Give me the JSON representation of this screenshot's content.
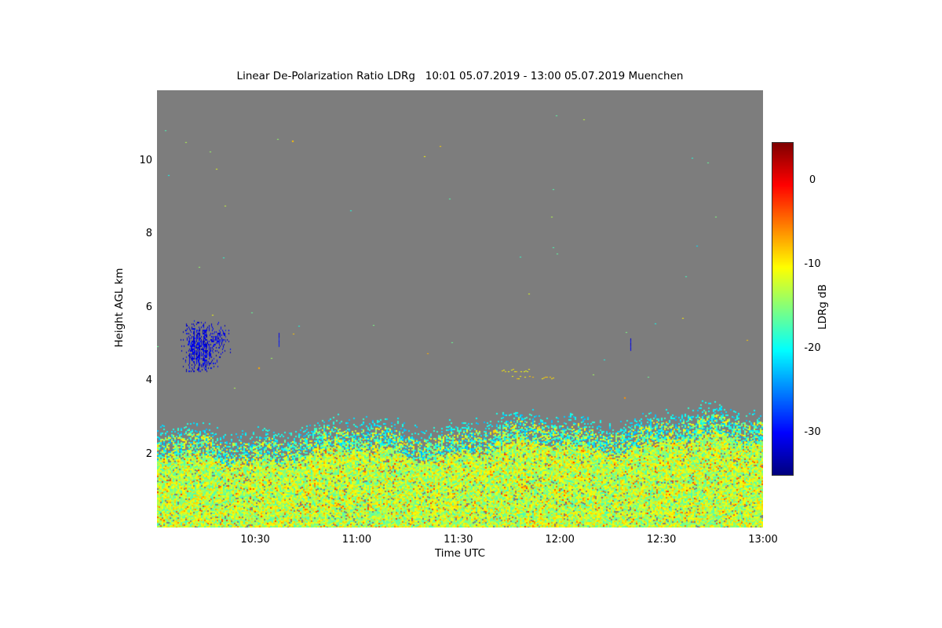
{
  "chart_data": {
    "type": "heatmap",
    "title": "Linear De-Polarization Ratio LDRg   10:01 05.07.2019 - 13:00 05.07.2019 Muenchen",
    "xlabel": "Time UTC",
    "ylabel": "Height AGL km",
    "station": "Muenchen",
    "time_start": "10:01 05.07.2019",
    "time_end": "13:00 05.07.2019",
    "x_axis": {
      "start_minutes_after_1000": 1,
      "end_minutes_after_1000": 180,
      "tick_labels": [
        "10:30",
        "11:00",
        "11:30",
        "12:00",
        "12:30",
        "13:00"
      ],
      "tick_minutes_after_start": [
        29,
        59,
        89,
        119,
        149,
        179
      ]
    },
    "y_axis": {
      "range_km": [
        0,
        11.93
      ],
      "ticks_km": [
        2,
        4,
        6,
        8,
        10
      ]
    },
    "colorbar": {
      "label": "LDRg dB",
      "tick_values_db": [
        0,
        -10,
        -20,
        -30
      ],
      "range_db": [
        -35,
        4.5
      ],
      "colormap": "jet"
    },
    "no_signal_color": "#7d7d7d",
    "layers": {
      "boundary_layer": {
        "description": "speckled aerosol boundary layer, LDRg mostly -20 to -5 dB",
        "top_km_at_start": 2.4,
        "top_km_at_end": 2.95,
        "typical_value_db": -13,
        "fringe_value_db": -20.5,
        "hot_speck_value_db": -5.5
      },
      "features": [
        {
          "kind": "cloud",
          "t_min": 7,
          "t_max": 22,
          "h_min_km": 4.25,
          "h_max_km": 5.65,
          "value_db": -31
        },
        {
          "kind": "streak_v",
          "t": 36,
          "h_min_km": 4.95,
          "h_max_km": 5.3,
          "value_db": -30
        },
        {
          "kind": "streak_v",
          "t": 140,
          "h_min_km": 4.85,
          "h_max_km": 5.2,
          "value_db": -31
        },
        {
          "kind": "streak_h",
          "t_min": 100,
          "t_max": 111,
          "h_km": 4.28,
          "value_db": -10
        },
        {
          "kind": "streak_h",
          "t_min": 105,
          "t_max": 118,
          "h_km": 4.07,
          "value_db": -9
        },
        {
          "kind": "dot",
          "t": 138,
          "h_km": 3.55,
          "value_db": -6
        },
        {
          "kind": "dot",
          "t": 40,
          "h_km": 10.55,
          "value_db": -8
        },
        {
          "kind": "dot",
          "t": 30,
          "h_km": 4.35,
          "value_db": -7
        }
      ],
      "sparse_speck_count": 70
    }
  }
}
